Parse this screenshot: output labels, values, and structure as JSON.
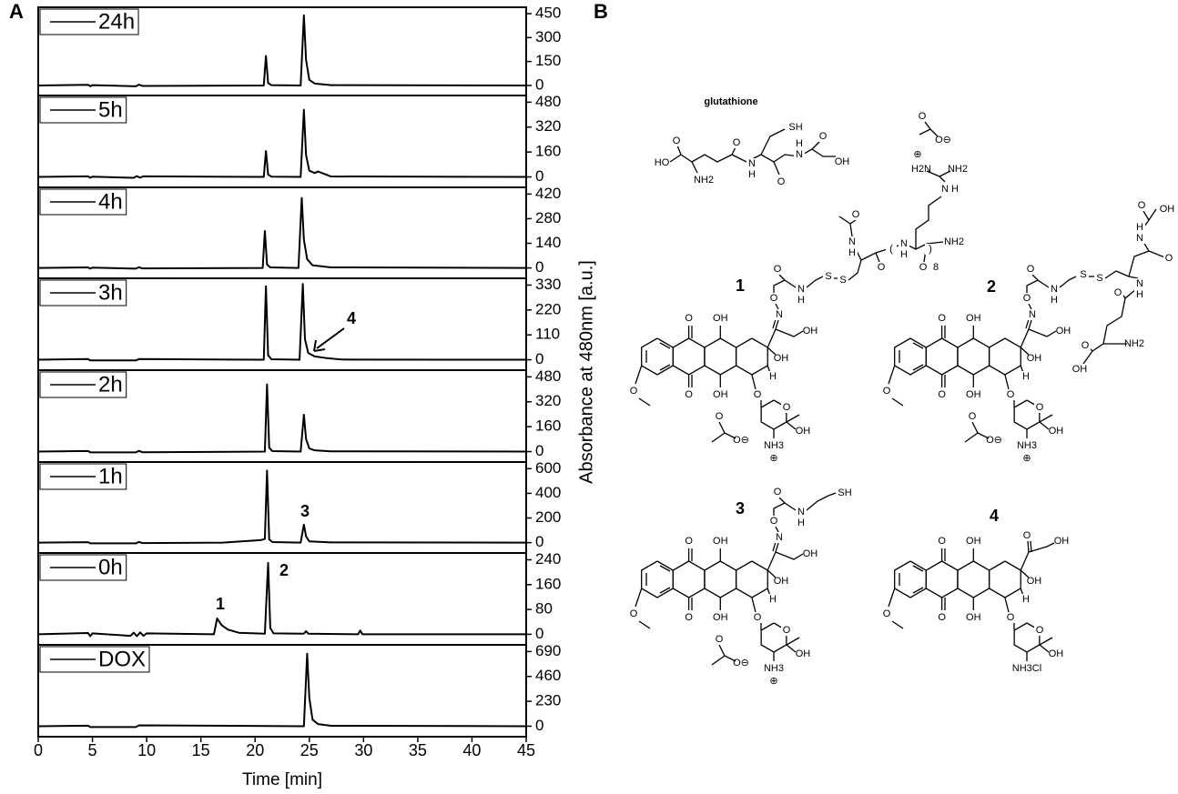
{
  "figure": {
    "labels": [
      "A",
      "B"
    ],
    "ylabel": "Absorbance at 480nm [a.u.]"
  },
  "chart_data": [
    {
      "type": "line",
      "x": [
        0,
        4.6,
        4.8,
        5.0,
        9.0,
        9.3,
        9.6,
        20.8,
        21.0,
        21.2,
        21.5,
        24.2,
        24.5,
        24.7,
        25.0,
        25.5,
        27,
        45
      ],
      "series": [
        {
          "name": "24h",
          "color": "#000000",
          "values": [
            0,
            4,
            -5,
            2,
            -5,
            5,
            -3,
            0,
            185,
            15,
            2,
            0,
            440,
            160,
            35,
            12,
            2,
            0
          ]
        }
      ],
      "xlim": [
        0,
        45
      ],
      "ylim": [
        -63,
        490
      ],
      "yticks": [
        0,
        150,
        300,
        450
      ],
      "legend": "upper left"
    },
    {
      "type": "line",
      "x": [
        0,
        4.6,
        4.8,
        5.0,
        8.8,
        9.1,
        9.4,
        9.7,
        20.8,
        21.0,
        21.2,
        21.5,
        24.2,
        24.5,
        24.7,
        25.0,
        25.5,
        25.8,
        27,
        45
      ],
      "series": [
        {
          "name": "5h",
          "color": "#000000",
          "values": [
            0,
            4,
            -5,
            2,
            -6,
            5,
            -5,
            4,
            0,
            166,
            15,
            2,
            0,
            432,
            140,
            40,
            25,
            35,
            3,
            0
          ]
        }
      ],
      "xlim": [
        0,
        45
      ],
      "ylim": [
        -67,
        523
      ],
      "yticks": [
        0,
        160,
        320,
        480
      ],
      "legend": "upper left"
    },
    {
      "type": "line",
      "x": [
        0,
        4.6,
        4.8,
        5.0,
        9.0,
        9.3,
        9.6,
        20.7,
        20.9,
        21.1,
        21.4,
        24.0,
        24.3,
        24.5,
        24.8,
        25.3,
        27,
        45
      ],
      "series": [
        {
          "name": "4h",
          "color": "#000000",
          "values": [
            0,
            3,
            -4,
            2,
            -4,
            4,
            -3,
            0,
            210,
            20,
            3,
            0,
            398,
            160,
            50,
            15,
            3,
            0
          ]
        }
      ],
      "xlim": [
        0,
        45
      ],
      "ylim": [
        -59,
        458
      ],
      "yticks": [
        0,
        140,
        280,
        420
      ],
      "legend": "upper left"
    },
    {
      "type": "line",
      "x": [
        0,
        4.6,
        4.8,
        9.0,
        9.3,
        20.8,
        21.0,
        21.2,
        21.5,
        24.1,
        24.4,
        24.6,
        24.9,
        25.5,
        26.5,
        28,
        45
      ],
      "series": [
        {
          "name": "3h",
          "color": "#000000",
          "values": [
            0,
            3,
            -3,
            -3,
            3,
            0,
            325,
            20,
            2,
            0,
            335,
            90,
            30,
            15,
            8,
            1,
            0
          ]
        }
      ],
      "xlim": [
        0,
        45
      ],
      "ylim": [
        -46,
        360
      ],
      "yticks": [
        0,
        110,
        220,
        330
      ],
      "legend": "upper left",
      "annotations": [
        "4"
      ]
    },
    {
      "type": "line",
      "x": [
        0,
        4.6,
        4.8,
        9.0,
        9.3,
        9.6,
        20.9,
        21.1,
        21.3,
        21.6,
        24.2,
        24.5,
        24.7,
        25.0,
        25.5,
        27,
        45
      ],
      "series": [
        {
          "name": "2h",
          "color": "#000000",
          "values": [
            0,
            4,
            -5,
            -5,
            5,
            -4,
            0,
            432,
            25,
            3,
            0,
            237,
            80,
            20,
            8,
            2,
            0
          ]
        }
      ],
      "xlim": [
        0,
        45
      ],
      "ylim": [
        -67,
        523
      ],
      "yticks": [
        0,
        160,
        320,
        480
      ],
      "legend": "upper left"
    },
    {
      "type": "line",
      "x": [
        0,
        4.6,
        4.8,
        9.0,
        9.3,
        9.6,
        17,
        20.5,
        20.9,
        21.1,
        21.3,
        21.6,
        24.2,
        24.5,
        24.7,
        25.0,
        27,
        45
      ],
      "series": [
        {
          "name": "1h",
          "color": "#000000",
          "values": [
            0,
            4,
            -6,
            -6,
            6,
            -4,
            0,
            20,
            30,
            585,
            25,
            5,
            0,
            146,
            50,
            10,
            2,
            0
          ]
        }
      ],
      "xlim": [
        0,
        45
      ],
      "ylim": [
        -84,
        654
      ],
      "yticks": [
        0,
        200,
        400,
        600
      ],
      "legend": "upper left",
      "annotations": [
        "3"
      ]
    },
    {
      "type": "line",
      "x": [
        0,
        4.6,
        4.8,
        5.0,
        8.5,
        8.8,
        9.1,
        9.4,
        9.7,
        10.0,
        16.2,
        16.5,
        16.9,
        17.5,
        18.5,
        20.9,
        21.2,
        21.4,
        21.7,
        24.5,
        24.7,
        24.9,
        29.5,
        29.7,
        29.9,
        45
      ],
      "series": [
        {
          "name": "0h",
          "color": "#000000",
          "values": [
            0,
            4,
            -6,
            3,
            -5,
            5,
            -6,
            6,
            -5,
            3,
            0,
            51,
            30,
            15,
            5,
            2,
            230,
            20,
            3,
            2,
            10,
            2,
            0,
            12,
            0,
            0
          ]
        }
      ],
      "xlim": [
        0,
        45
      ],
      "ylim": [
        -34,
        262
      ],
      "yticks": [
        0,
        80,
        160,
        240
      ],
      "legend": "upper left",
      "annotations": [
        "1",
        "2"
      ]
    },
    {
      "type": "line",
      "x": [
        0,
        4.6,
        4.8,
        9.0,
        9.3,
        24.5,
        24.8,
        25.0,
        25.3,
        25.8,
        27,
        45
      ],
      "series": [
        {
          "name": "DOX",
          "color": "#000000",
          "values": [
            0,
            5,
            -8,
            -8,
            8,
            0,
            670,
            260,
            60,
            20,
            4,
            0
          ]
        }
      ],
      "xlim": [
        0,
        45
      ],
      "ylim": [
        -97,
        752
      ],
      "yticks": [
        0,
        230,
        460,
        690
      ],
      "xticks": [
        0,
        5,
        10,
        15,
        20,
        25,
        30,
        35,
        40,
        45
      ],
      "xlabel": "Time [min]",
      "legend": "upper left"
    }
  ],
  "panel_b": {
    "glutathione": {
      "name": "glutathione",
      "labels": [
        "HO",
        "O",
        "NH2",
        "O",
        "N",
        "H",
        "SH",
        "O",
        "N",
        "H",
        "O",
        "OH"
      ]
    },
    "structures": [
      {
        "number": "1",
        "core": [
          "O",
          "O",
          "OH",
          "OH",
          "O",
          "OH",
          "H",
          "O",
          "O",
          "OH",
          "NH3",
          "⊕",
          "O",
          "O⊖"
        ],
        "side": [
          "N",
          "O",
          "OH",
          "O",
          "N",
          "H",
          "S",
          "S",
          "N",
          "H",
          "O",
          "O",
          "(",
          "N",
          "H",
          "O",
          ")",
          "8",
          "NH2",
          "N",
          "H",
          "H2N",
          "⊕",
          "NH2",
          "O",
          "O⊖"
        ]
      },
      {
        "number": "2",
        "core": [
          "O",
          "O",
          "OH",
          "OH",
          "O",
          "OH",
          "H",
          "O",
          "O",
          "OH",
          "NH3",
          "⊕",
          "O",
          "O⊖"
        ],
        "side": [
          "N",
          "O",
          "OH",
          "O",
          "N",
          "H",
          "S",
          "S",
          "N",
          "H",
          "O",
          "N",
          "H",
          "O",
          "OH",
          "O",
          "NH2",
          "OH",
          "O"
        ]
      },
      {
        "number": "3",
        "core": [
          "O",
          "O",
          "OH",
          "OH",
          "O",
          "OH",
          "H",
          "O",
          "O",
          "OH",
          "NH3",
          "⊕",
          "O",
          "O⊖"
        ],
        "side": [
          "N",
          "O",
          "OH",
          "O",
          "N",
          "H",
          "SH"
        ]
      },
      {
        "number": "4",
        "core": [
          "O",
          "O",
          "OH",
          "OH",
          "O",
          "OH",
          "H",
          "O",
          "O",
          "OH",
          "NH3Cl"
        ],
        "side": [
          "O",
          "OH"
        ]
      }
    ]
  }
}
